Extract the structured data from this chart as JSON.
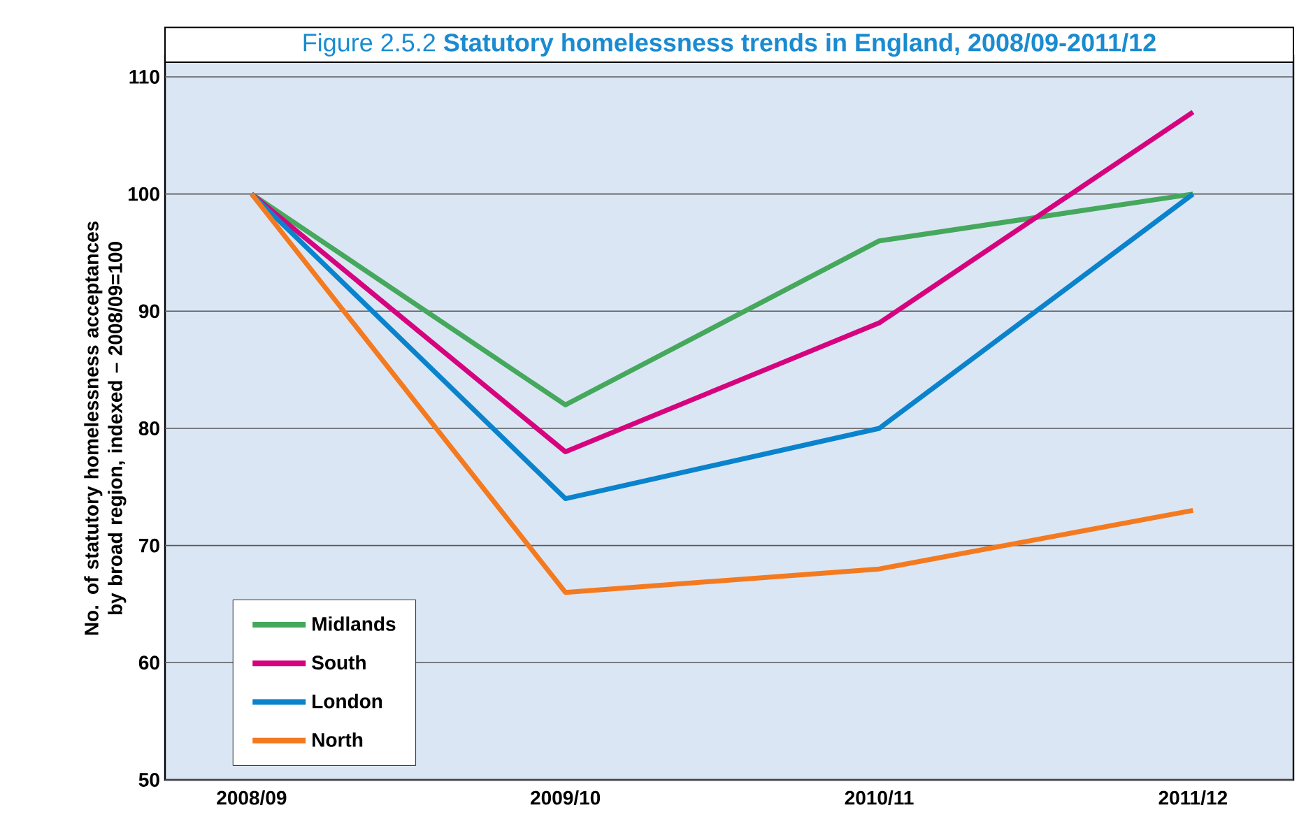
{
  "chart_data": {
    "type": "line",
    "title": "Figure 2.5.2 **Statutory homelessness trends in England, 2008/09-2011/12**",
    "ylabel": "No. of statutory homelessness acceptances by broad region, indexed – 2008/09=100",
    "categories": [
      "2008/09",
      "2009/10",
      "2010/11",
      "2011/12"
    ],
    "series": [
      {
        "name": "Midlands",
        "color": "#45a85c",
        "values": [
          100,
          82,
          96,
          100
        ]
      },
      {
        "name": "South",
        "color": "#d6037f",
        "values": [
          100,
          78,
          89,
          107
        ]
      },
      {
        "name": "London",
        "color": "#0a83cc",
        "values": [
          100,
          74,
          80,
          100
        ]
      },
      {
        "name": "North",
        "color": "#f47a20",
        "values": [
          100,
          66,
          68,
          73
        ]
      }
    ],
    "ylim": [
      50,
      110
    ],
    "yticks": [
      50,
      60,
      70,
      80,
      90,
      100,
      110
    ],
    "grid": "y",
    "legend": "bottom left",
    "marker": "none",
    "line_style": "solid"
  }
}
